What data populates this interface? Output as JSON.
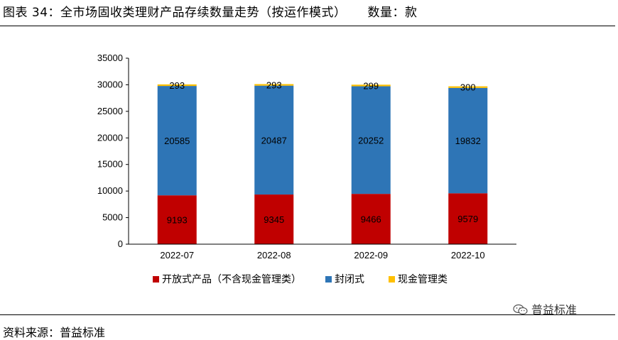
{
  "header": {
    "title": "图表 34：全市场固收类理财产品存续数量走势（按运作模式）",
    "units": "数量：款"
  },
  "footer": {
    "source": "资料来源：普益标准",
    "watermark": "普益标准"
  },
  "chart_data": {
    "type": "bar",
    "stacked": true,
    "categories": [
      "2022-07",
      "2022-08",
      "2022-09",
      "2022-10"
    ],
    "series": [
      {
        "name": "开放式产品（不含现金管理类）",
        "color": "#c00000",
        "values": [
          9193,
          9345,
          9466,
          9579
        ]
      },
      {
        "name": "封闭式",
        "color": "#2e75b6",
        "values": [
          20585,
          20487,
          20252,
          19832
        ]
      },
      {
        "name": "现金管理类",
        "color": "#ffc000",
        "values": [
          293,
          293,
          299,
          300
        ]
      }
    ],
    "ylim": [
      0,
      35000
    ],
    "yticks": [
      "0",
      "5000",
      "10000",
      "15000",
      "20000",
      "25000",
      "30000",
      "35000"
    ],
    "grid": false,
    "legend_position": "bottom",
    "title": "",
    "xlabel": "",
    "ylabel": ""
  }
}
